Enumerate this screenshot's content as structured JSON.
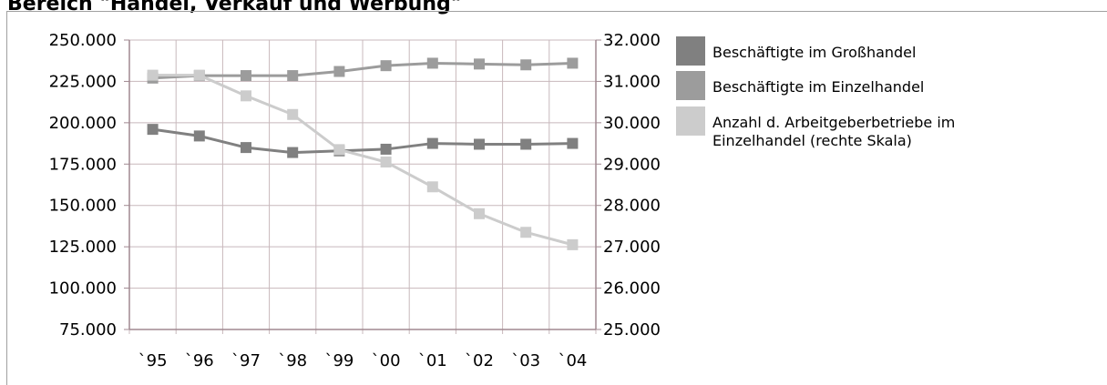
{
  "header": {
    "title": "Bereich \"Handel, Verkauf und Werbung\""
  },
  "chart_data": {
    "type": "line",
    "categories": [
      "`95",
      "`96",
      "`97",
      "`98",
      "`99",
      "`00",
      "`01",
      "`02",
      "`03",
      "`04"
    ],
    "y_left": {
      "ylim": [
        75000,
        250000
      ],
      "ticks": [
        "250.000",
        "225.000",
        "200.000",
        "175.000",
        "150.000",
        "125.000",
        "100.000",
        "75.000"
      ]
    },
    "y_right": {
      "ylim": [
        25000,
        32000
      ],
      "ticks": [
        "32.000",
        "31.000",
        "30.000",
        "29.000",
        "28.000",
        "27.000",
        "26.000",
        "25.000"
      ]
    },
    "grid": true,
    "legend_position": "right",
    "series": [
      {
        "name": "Beschäftigte im Großhandel",
        "axis": "left",
        "color": "#808080",
        "values": [
          196000,
          192000,
          185000,
          182000,
          183000,
          184000,
          187500,
          187000,
          187000,
          187500
        ]
      },
      {
        "name": "Beschäftigte im Einzelhandel",
        "axis": "left",
        "color": "#9c9c9c",
        "values": [
          227000,
          228500,
          228500,
          228500,
          231000,
          234500,
          236000,
          235500,
          235000,
          236000
        ]
      },
      {
        "name": "Anzahl d. Arbeitgeberbetriebe im Einzelhandel (rechte Skala)",
        "axis": "right",
        "color": "#cccccc",
        "values": [
          31150,
          31150,
          30650,
          30200,
          29350,
          29050,
          28450,
          27800,
          27350,
          27050
        ]
      }
    ]
  },
  "legend_lines": [
    [
      "Beschäftigte im Großhandel"
    ],
    [
      "Beschäftigte im Einzelhandel"
    ],
    [
      "Anzahl d. Arbeitgeberbetriebe im",
      "Einzelhandel (rechte Skala)"
    ]
  ]
}
